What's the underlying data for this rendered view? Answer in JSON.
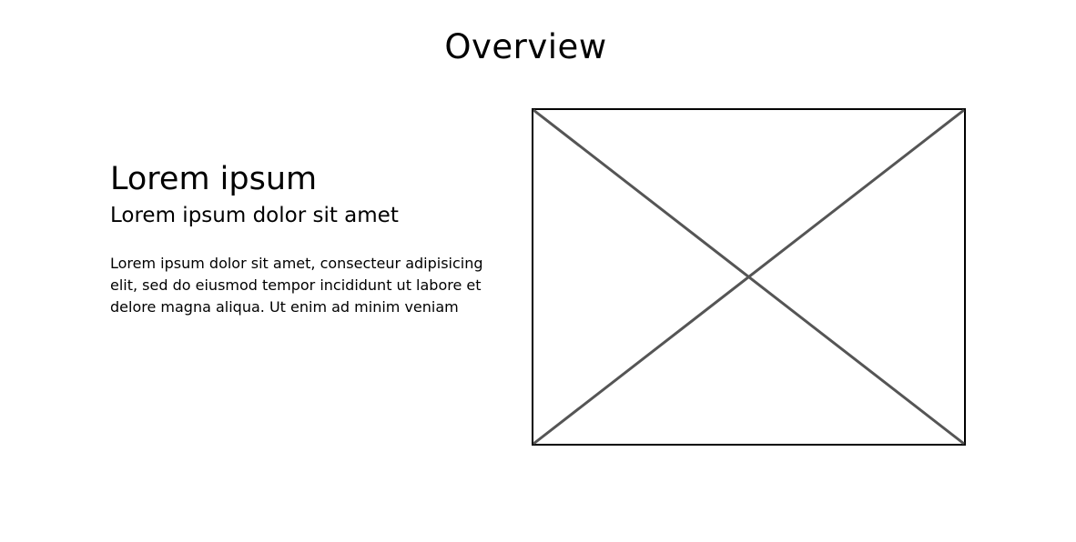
{
  "page": {
    "title": "Overview"
  },
  "content": {
    "heading": "Lorem ipsum",
    "subheading": "Lorem ipsum dolor sit amet",
    "body": "Lorem ipsum dolor sit amet, consecteur adipisicing elit, sed do eiusmod tempor incididunt ut labore et delore magna aliqua. Ut enim ad minim veniam"
  },
  "image_placeholder": {
    "icon": "image-placeholder-x-icon",
    "border_color": "#000000",
    "cross_color": "#555555"
  }
}
